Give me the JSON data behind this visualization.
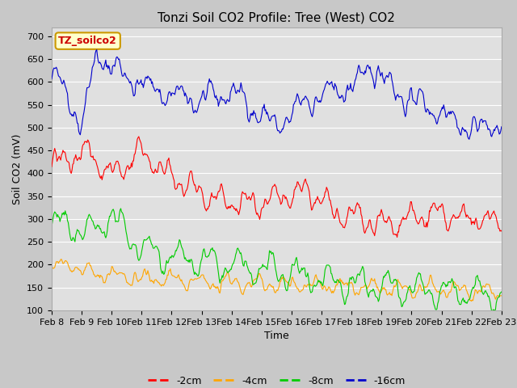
{
  "title": "Tonzi Soil CO2 Profile: Tree (West) CO2",
  "ylabel": "Soil CO2 (mV)",
  "xlabel": "Time",
  "legend_label": "TZ_soilco2",
  "ylim": [
    100,
    720
  ],
  "yticks": [
    100,
    150,
    200,
    250,
    300,
    350,
    400,
    450,
    500,
    550,
    600,
    650,
    700
  ],
  "x_labels": [
    "Feb 8",
    "Feb 9",
    "Feb 10",
    "Feb 11",
    "Feb 12",
    "Feb 13",
    "Feb 14",
    "Feb 15",
    "Feb 16",
    "Feb 17",
    "Feb 18",
    "Feb 19",
    "Feb 20",
    "Feb 21",
    "Feb 22",
    "Feb 23"
  ],
  "colors": {
    "-2cm": "#ff0000",
    "-4cm": "#ffa500",
    "-8cm": "#00cc00",
    "-16cm": "#0000cc"
  },
  "legend_entries": [
    "-2cm",
    "-4cm",
    "-8cm",
    "-16cm"
  ],
  "fig_bg_color": "#c8c8c8",
  "plot_bg_color": "#e0e0e0",
  "title_fontsize": 11,
  "axis_fontsize": 9,
  "tick_fontsize": 8,
  "legend_box_color": "#ffffcc",
  "legend_box_edge": "#cc9900",
  "legend_text_color": "#cc0000",
  "grid_color": "#ffffff"
}
